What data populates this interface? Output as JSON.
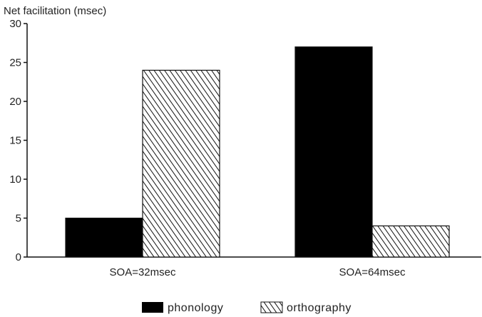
{
  "chart_data": {
    "type": "bar",
    "ylabel": "Net facilitation (msec)",
    "categories": [
      "SOA=32msec",
      "SOA=64msec"
    ],
    "series": [
      {
        "name": "phonology",
        "values": [
          5,
          27
        ],
        "fill": "solid",
        "color": "#000000"
      },
      {
        "name": "orthography",
        "values": [
          24,
          4
        ],
        "fill": "hatched",
        "color": "#000000"
      }
    ],
    "ylim": [
      0,
      30
    ],
    "yticks": [
      "0",
      "5",
      "10",
      "15",
      "20",
      "25",
      "30"
    ],
    "grid": false,
    "legend": "bottom-center"
  }
}
